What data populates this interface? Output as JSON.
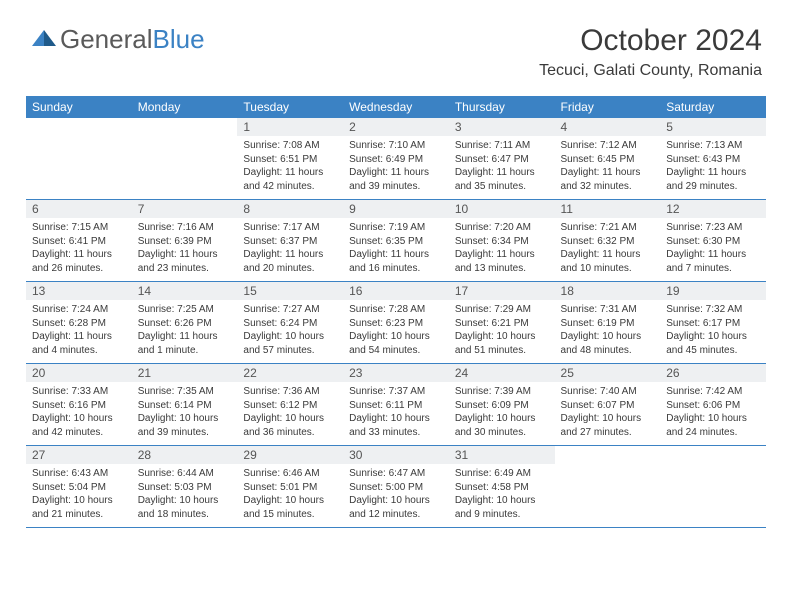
{
  "logo": {
    "text_gray": "General",
    "text_blue": "Blue"
  },
  "title": "October 2024",
  "location": "Tecuci, Galati County, Romania",
  "colors": {
    "header_bg": "#3b82c4",
    "header_fg": "#ffffff",
    "daynum_bg": "#eef0f2",
    "text": "#3a3a3a",
    "logo_gray": "#5a5a5a",
    "logo_blue": "#3b82c4",
    "rule": "#3b82c4"
  },
  "day_names": [
    "Sunday",
    "Monday",
    "Tuesday",
    "Wednesday",
    "Thursday",
    "Friday",
    "Saturday"
  ],
  "weeks": [
    [
      {
        "n": "",
        "sunrise": "",
        "sunset": "",
        "daylight": ""
      },
      {
        "n": "",
        "sunrise": "",
        "sunset": "",
        "daylight": ""
      },
      {
        "n": "1",
        "sunrise": "Sunrise: 7:08 AM",
        "sunset": "Sunset: 6:51 PM",
        "daylight": "Daylight: 11 hours and 42 minutes."
      },
      {
        "n": "2",
        "sunrise": "Sunrise: 7:10 AM",
        "sunset": "Sunset: 6:49 PM",
        "daylight": "Daylight: 11 hours and 39 minutes."
      },
      {
        "n": "3",
        "sunrise": "Sunrise: 7:11 AM",
        "sunset": "Sunset: 6:47 PM",
        "daylight": "Daylight: 11 hours and 35 minutes."
      },
      {
        "n": "4",
        "sunrise": "Sunrise: 7:12 AM",
        "sunset": "Sunset: 6:45 PM",
        "daylight": "Daylight: 11 hours and 32 minutes."
      },
      {
        "n": "5",
        "sunrise": "Sunrise: 7:13 AM",
        "sunset": "Sunset: 6:43 PM",
        "daylight": "Daylight: 11 hours and 29 minutes."
      }
    ],
    [
      {
        "n": "6",
        "sunrise": "Sunrise: 7:15 AM",
        "sunset": "Sunset: 6:41 PM",
        "daylight": "Daylight: 11 hours and 26 minutes."
      },
      {
        "n": "7",
        "sunrise": "Sunrise: 7:16 AM",
        "sunset": "Sunset: 6:39 PM",
        "daylight": "Daylight: 11 hours and 23 minutes."
      },
      {
        "n": "8",
        "sunrise": "Sunrise: 7:17 AM",
        "sunset": "Sunset: 6:37 PM",
        "daylight": "Daylight: 11 hours and 20 minutes."
      },
      {
        "n": "9",
        "sunrise": "Sunrise: 7:19 AM",
        "sunset": "Sunset: 6:35 PM",
        "daylight": "Daylight: 11 hours and 16 minutes."
      },
      {
        "n": "10",
        "sunrise": "Sunrise: 7:20 AM",
        "sunset": "Sunset: 6:34 PM",
        "daylight": "Daylight: 11 hours and 13 minutes."
      },
      {
        "n": "11",
        "sunrise": "Sunrise: 7:21 AM",
        "sunset": "Sunset: 6:32 PM",
        "daylight": "Daylight: 11 hours and 10 minutes."
      },
      {
        "n": "12",
        "sunrise": "Sunrise: 7:23 AM",
        "sunset": "Sunset: 6:30 PM",
        "daylight": "Daylight: 11 hours and 7 minutes."
      }
    ],
    [
      {
        "n": "13",
        "sunrise": "Sunrise: 7:24 AM",
        "sunset": "Sunset: 6:28 PM",
        "daylight": "Daylight: 11 hours and 4 minutes."
      },
      {
        "n": "14",
        "sunrise": "Sunrise: 7:25 AM",
        "sunset": "Sunset: 6:26 PM",
        "daylight": "Daylight: 11 hours and 1 minute."
      },
      {
        "n": "15",
        "sunrise": "Sunrise: 7:27 AM",
        "sunset": "Sunset: 6:24 PM",
        "daylight": "Daylight: 10 hours and 57 minutes."
      },
      {
        "n": "16",
        "sunrise": "Sunrise: 7:28 AM",
        "sunset": "Sunset: 6:23 PM",
        "daylight": "Daylight: 10 hours and 54 minutes."
      },
      {
        "n": "17",
        "sunrise": "Sunrise: 7:29 AM",
        "sunset": "Sunset: 6:21 PM",
        "daylight": "Daylight: 10 hours and 51 minutes."
      },
      {
        "n": "18",
        "sunrise": "Sunrise: 7:31 AM",
        "sunset": "Sunset: 6:19 PM",
        "daylight": "Daylight: 10 hours and 48 minutes."
      },
      {
        "n": "19",
        "sunrise": "Sunrise: 7:32 AM",
        "sunset": "Sunset: 6:17 PM",
        "daylight": "Daylight: 10 hours and 45 minutes."
      }
    ],
    [
      {
        "n": "20",
        "sunrise": "Sunrise: 7:33 AM",
        "sunset": "Sunset: 6:16 PM",
        "daylight": "Daylight: 10 hours and 42 minutes."
      },
      {
        "n": "21",
        "sunrise": "Sunrise: 7:35 AM",
        "sunset": "Sunset: 6:14 PM",
        "daylight": "Daylight: 10 hours and 39 minutes."
      },
      {
        "n": "22",
        "sunrise": "Sunrise: 7:36 AM",
        "sunset": "Sunset: 6:12 PM",
        "daylight": "Daylight: 10 hours and 36 minutes."
      },
      {
        "n": "23",
        "sunrise": "Sunrise: 7:37 AM",
        "sunset": "Sunset: 6:11 PM",
        "daylight": "Daylight: 10 hours and 33 minutes."
      },
      {
        "n": "24",
        "sunrise": "Sunrise: 7:39 AM",
        "sunset": "Sunset: 6:09 PM",
        "daylight": "Daylight: 10 hours and 30 minutes."
      },
      {
        "n": "25",
        "sunrise": "Sunrise: 7:40 AM",
        "sunset": "Sunset: 6:07 PM",
        "daylight": "Daylight: 10 hours and 27 minutes."
      },
      {
        "n": "26",
        "sunrise": "Sunrise: 7:42 AM",
        "sunset": "Sunset: 6:06 PM",
        "daylight": "Daylight: 10 hours and 24 minutes."
      }
    ],
    [
      {
        "n": "27",
        "sunrise": "Sunrise: 6:43 AM",
        "sunset": "Sunset: 5:04 PM",
        "daylight": "Daylight: 10 hours and 21 minutes."
      },
      {
        "n": "28",
        "sunrise": "Sunrise: 6:44 AM",
        "sunset": "Sunset: 5:03 PM",
        "daylight": "Daylight: 10 hours and 18 minutes."
      },
      {
        "n": "29",
        "sunrise": "Sunrise: 6:46 AM",
        "sunset": "Sunset: 5:01 PM",
        "daylight": "Daylight: 10 hours and 15 minutes."
      },
      {
        "n": "30",
        "sunrise": "Sunrise: 6:47 AM",
        "sunset": "Sunset: 5:00 PM",
        "daylight": "Daylight: 10 hours and 12 minutes."
      },
      {
        "n": "31",
        "sunrise": "Sunrise: 6:49 AM",
        "sunset": "Sunset: 4:58 PM",
        "daylight": "Daylight: 10 hours and 9 minutes."
      },
      {
        "n": "",
        "sunrise": "",
        "sunset": "",
        "daylight": ""
      },
      {
        "n": "",
        "sunrise": "",
        "sunset": "",
        "daylight": ""
      }
    ]
  ]
}
